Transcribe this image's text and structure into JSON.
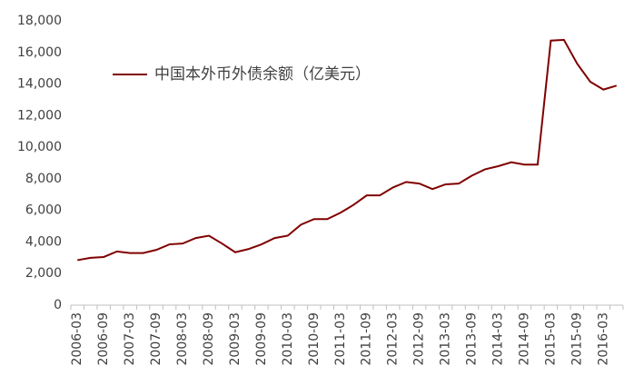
{
  "chart_data": {
    "type": "line",
    "categories": [
      "2006-03",
      null,
      "2006-09",
      null,
      "2007-03",
      null,
      "2007-09",
      null,
      "2008-03",
      null,
      "2008-09",
      null,
      "2009-03",
      null,
      "2009-09",
      null,
      "2010-03",
      null,
      "2010-09",
      null,
      "2011-03",
      null,
      "2011-09",
      null,
      "2012-03",
      null,
      "2012-09",
      null,
      "2013-03",
      null,
      "2013-09",
      null,
      "2014-03",
      null,
      "2014-09",
      null,
      "2015-03",
      null,
      "2015-09",
      null,
      "2016-03",
      null
    ],
    "series": [
      {
        "name": "中国本外币外债余额（亿美元）",
        "color": "#800000",
        "values": [
          2850,
          3000,
          3050,
          3400,
          3300,
          3300,
          3500,
          3850,
          3900,
          4250,
          4400,
          3900,
          3350,
          3550,
          3850,
          4250,
          4400,
          5100,
          5450,
          5450,
          5850,
          6350,
          6950,
          6950,
          7450,
          7800,
          7700,
          7350,
          7650,
          7700,
          8200,
          8600,
          8800,
          9050,
          8900,
          8900,
          16750,
          16800,
          15300,
          14150,
          13650,
          13900
        ]
      }
    ],
    "ylim": [
      0,
      18000
    ],
    "yticks": [
      0,
      {
        "value": 2000,
        "label": "2,000"
      },
      {
        "value": 4000,
        "label": "4,000"
      },
      {
        "value": 6000,
        "label": "6,000"
      },
      {
        "value": 8000,
        "label": "8,000"
      },
      {
        "value": 10000,
        "label": "10,000"
      },
      {
        "value": 12000,
        "label": "12,000"
      },
      {
        "value": 14000,
        "label": "14,000"
      },
      {
        "value": 16000,
        "label": "16,000"
      },
      {
        "value": 18000,
        "label": "18,000"
      }
    ],
    "grid": false,
    "legend": "top-left"
  }
}
